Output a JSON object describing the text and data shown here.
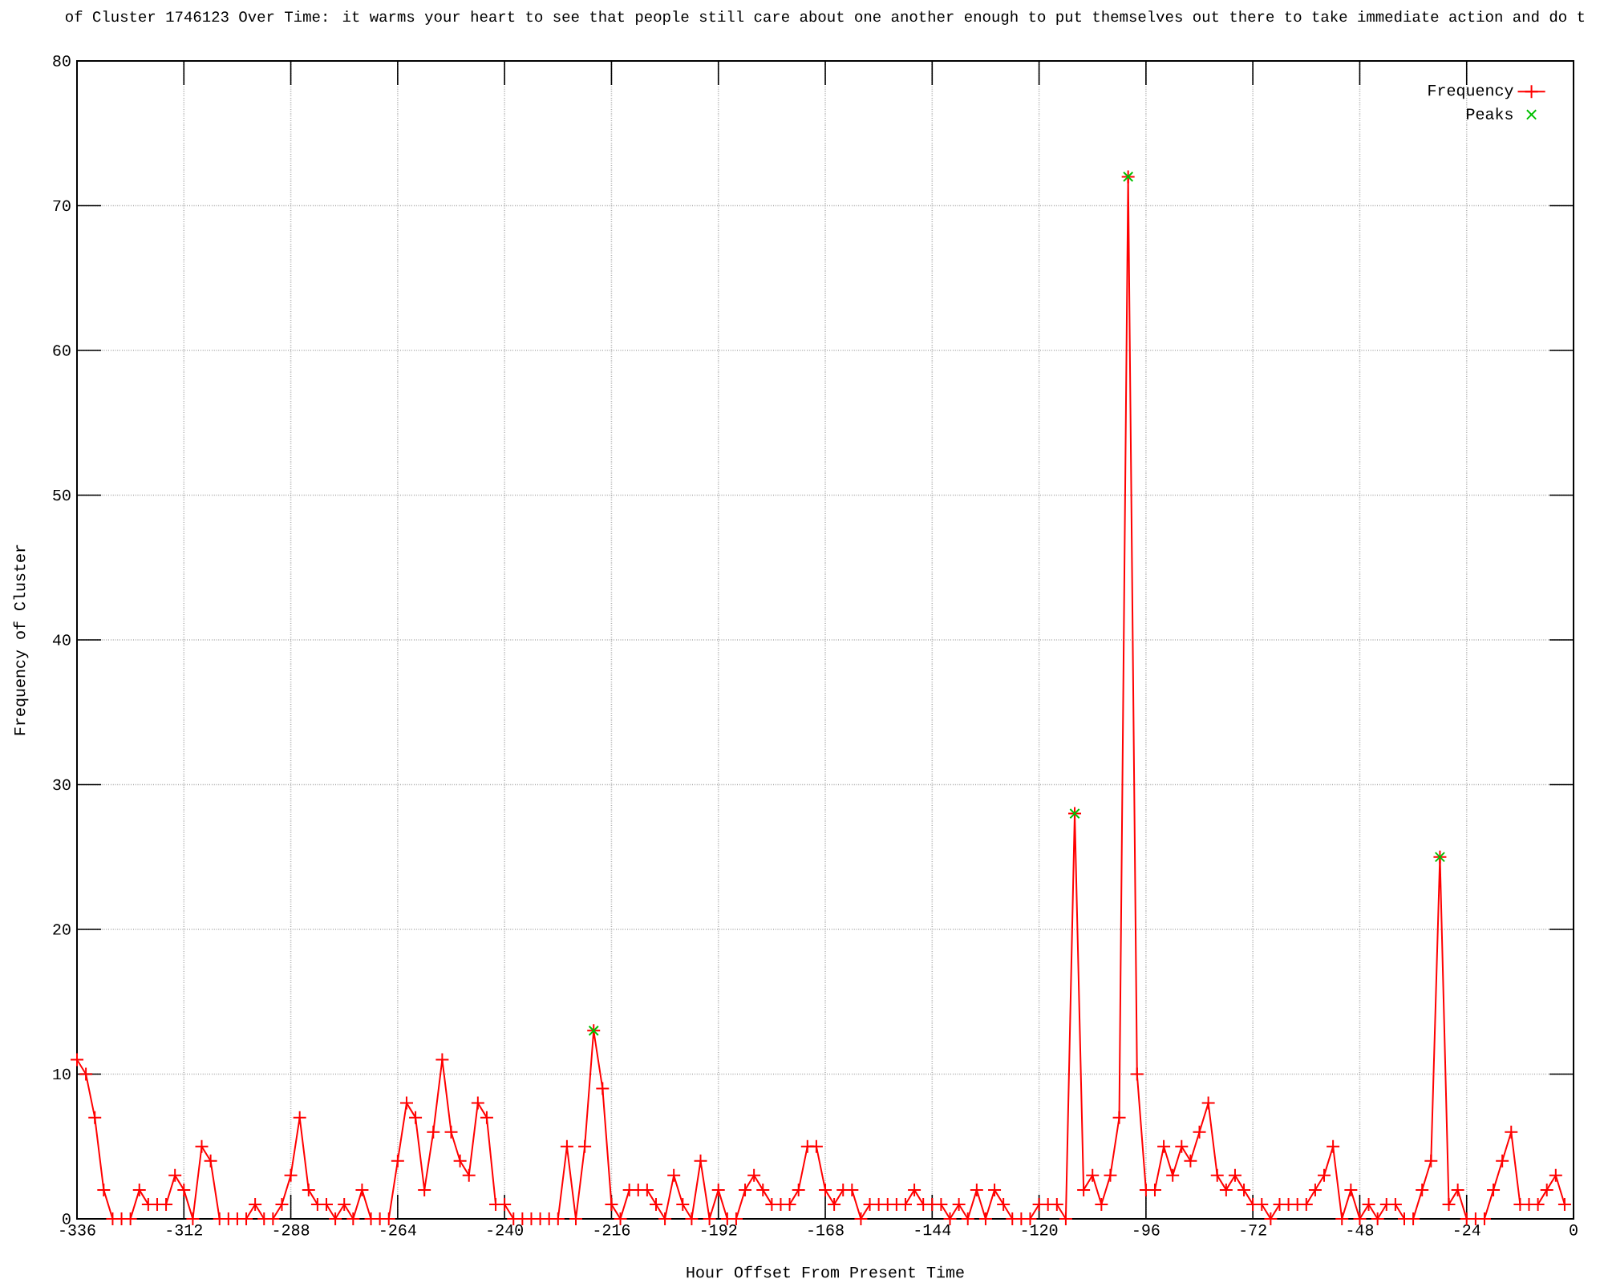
{
  "chart_data": {
    "type": "line",
    "title": "of Cluster 1746123 Over Time: it warms your heart to see that people still care about one another enough to put themselves out there to take immediate action and do t",
    "xlabel": "Hour Offset From Present Time",
    "ylabel": "Frequency of Cluster",
    "x": [
      -336,
      -334,
      -332,
      -330,
      -328,
      -326,
      -324,
      -322,
      -320,
      -318,
      -316,
      -314,
      -312,
      -310,
      -308,
      -306,
      -304,
      -302,
      -300,
      -298,
      -296,
      -294,
      -292,
      -290,
      -288,
      -286,
      -284,
      -282,
      -280,
      -278,
      -276,
      -274,
      -272,
      -270,
      -268,
      -266,
      -264,
      -262,
      -260,
      -258,
      -256,
      -254,
      -252,
      -250,
      -248,
      -246,
      -244,
      -242,
      -240,
      -238,
      -236,
      -234,
      -232,
      -230,
      -228,
      -226,
      -224,
      -222,
      -220,
      -218,
      -216,
      -214,
      -212,
      -210,
      -208,
      -206,
      -204,
      -202,
      -200,
      -198,
      -196,
      -194,
      -192,
      -190,
      -188,
      -186,
      -184,
      -182,
      -180,
      -178,
      -176,
      -174,
      -172,
      -170,
      -168,
      -166,
      -164,
      -162,
      -160,
      -158,
      -156,
      -154,
      -152,
      -150,
      -148,
      -146,
      -144,
      -142,
      -140,
      -138,
      -136,
      -134,
      -132,
      -130,
      -128,
      -126,
      -124,
      -122,
      -120,
      -118,
      -116,
      -114,
      -112,
      -110,
      -108,
      -106,
      -104,
      -102,
      -100,
      -98,
      -96,
      -94,
      -92,
      -90,
      -88,
      -86,
      -84,
      -82,
      -80,
      -78,
      -76,
      -74,
      -72,
      -70,
      -68,
      -66,
      -64,
      -62,
      -60,
      -58,
      -56,
      -54,
      -52,
      -50,
      -48,
      -46,
      -44,
      -42,
      -40,
      -38,
      -36,
      -34,
      -32,
      -30,
      -28,
      -26,
      -24,
      -22,
      -20,
      -18,
      -16,
      -14,
      -12,
      -10,
      -8,
      -6,
      -4,
      -2
    ],
    "series": [
      {
        "name": "Frequency",
        "color": "#ff0000",
        "marker": "cross",
        "values": [
          11,
          10,
          7,
          2,
          0,
          0,
          0,
          2,
          1,
          1,
          1,
          3,
          2,
          0,
          5,
          4,
          0,
          0,
          0,
          0,
          1,
          0,
          0,
          1,
          3,
          7,
          2,
          1,
          1,
          0,
          1,
          0,
          2,
          0,
          0,
          0,
          4,
          8,
          7,
          2,
          6,
          11,
          6,
          4,
          3,
          8,
          7,
          1,
          1,
          0,
          0,
          0,
          0,
          0,
          0,
          5,
          0,
          5,
          13,
          9,
          1,
          0,
          2,
          2,
          2,
          1,
          0,
          3,
          1,
          0,
          4,
          0,
          2,
          0,
          0,
          2,
          3,
          2,
          1,
          1,
          1,
          2,
          5,
          5,
          2,
          1,
          2,
          2,
          0,
          1,
          1,
          1,
          1,
          1,
          2,
          1,
          1,
          1,
          0,
          1,
          0,
          2,
          0,
          2,
          1,
          0,
          0,
          0,
          1,
          1,
          1,
          0,
          28,
          2,
          3,
          1,
          3,
          7,
          72,
          10,
          2,
          2,
          5,
          3,
          5,
          4,
          6,
          8,
          3,
          2,
          3,
          2,
          1,
          1,
          0,
          1,
          1,
          1,
          1,
          2,
          3,
          5,
          0,
          2,
          0,
          1,
          0,
          1,
          1,
          0,
          0,
          2,
          4,
          25,
          1,
          2,
          0,
          0,
          0,
          2,
          4,
          6,
          1,
          1,
          1,
          2,
          3,
          1
        ]
      },
      {
        "name": "Peaks",
        "type": "scatter",
        "color": "#00c000",
        "marker": "cross",
        "x": [
          -220,
          -112,
          -100,
          -30
        ],
        "values": [
          13,
          28,
          72,
          25
        ]
      }
    ],
    "xlim": [
      -336,
      0
    ],
    "ylim": [
      0,
      80
    ],
    "xticks": [
      -336,
      -312,
      -288,
      -264,
      -240,
      -216,
      -192,
      -168,
      -144,
      -120,
      -96,
      -72,
      -48,
      -24,
      0
    ],
    "yticks": [
      0,
      10,
      20,
      30,
      40,
      50,
      60,
      70,
      80
    ],
    "grid": true,
    "legend": "top right"
  }
}
